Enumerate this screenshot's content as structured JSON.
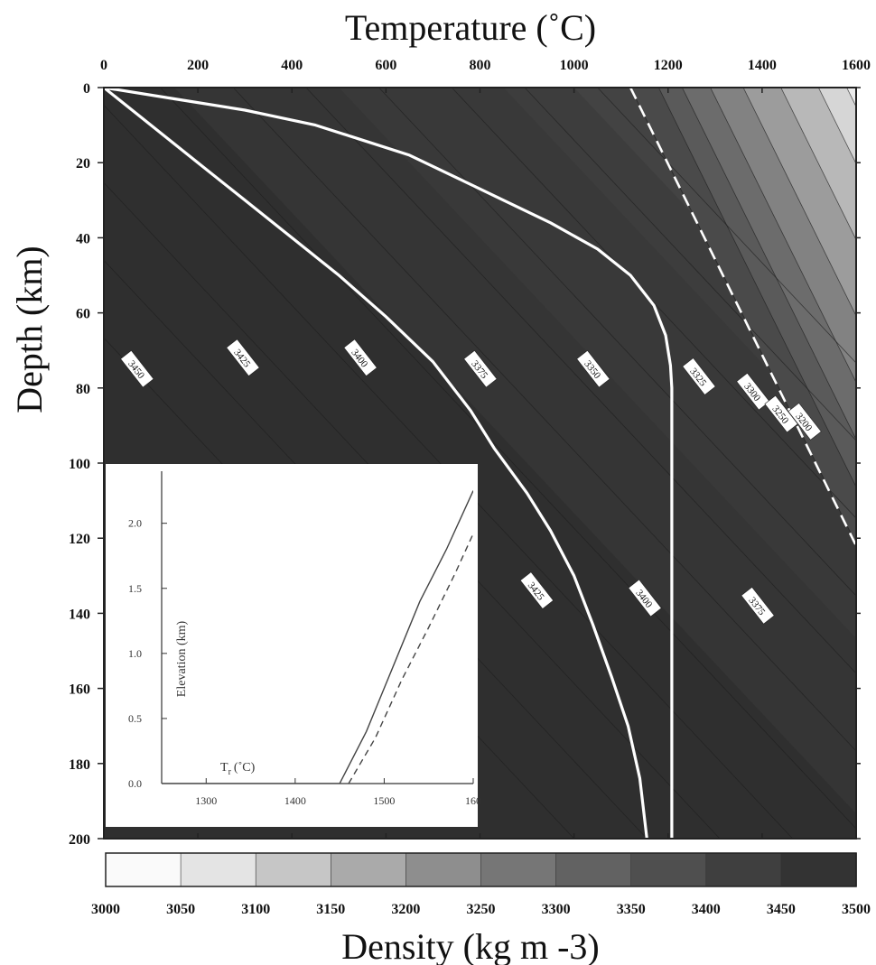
{
  "chart_data": [
    {
      "type": "heatmap",
      "title": "Temperature (˚C)",
      "xlabel": "Temperature (˚C)",
      "ylabel": "Depth (km)",
      "colorbar_label": "Density (kg m -3)",
      "xlim": [
        0,
        1600
      ],
      "ylim": [
        200,
        0
      ],
      "x_ticks": [
        0,
        200,
        400,
        600,
        800,
        1000,
        1200,
        1400,
        1600
      ],
      "y_ticks": [
        0,
        20,
        40,
        60,
        80,
        100,
        120,
        140,
        160,
        180,
        200
      ],
      "colorbar_ticks": [
        3000,
        3050,
        3100,
        3150,
        3200,
        3250,
        3300,
        3350,
        3400,
        3450,
        3500
      ],
      "colorbar_colors": [
        "#fafafa",
        "#e4e4e4",
        "#c6c6c6",
        "#aaaaaa",
        "#8e8e8e",
        "#767676",
        "#626262",
        "#4f4f4f",
        "#3f3f3f",
        "#333333"
      ],
      "contour_labels": [
        {
          "text": "3450",
          "x": 70,
          "y": 75
        },
        {
          "text": "3425",
          "x": 295,
          "y": 72
        },
        {
          "text": "3400",
          "x": 545,
          "y": 72
        },
        {
          "text": "3375",
          "x": 800,
          "y": 75
        },
        {
          "text": "3350",
          "x": 1040,
          "y": 75
        },
        {
          "text": "3325",
          "x": 1265,
          "y": 77
        },
        {
          "text": "3300",
          "x": 1380,
          "y": 81
        },
        {
          "text": "3250",
          "x": 1440,
          "y": 87
        },
        {
          "text": "3200",
          "x": 1490,
          "y": 89
        },
        {
          "text": "3425",
          "x": 920,
          "y": 134
        },
        {
          "text": "3400",
          "x": 1150,
          "y": 136
        },
        {
          "text": "3375",
          "x": 1390,
          "y": 138
        }
      ],
      "geotherms": [
        {
          "style": "solid-white",
          "points": [
            [
              0,
              0
            ],
            [
              150,
              3
            ],
            [
              300,
              6
            ],
            [
              450,
              10
            ],
            [
              550,
              14
            ],
            [
              650,
              18
            ],
            [
              750,
              24
            ],
            [
              850,
              30
            ],
            [
              950,
              36
            ],
            [
              1050,
              43
            ],
            [
              1120,
              50
            ],
            [
              1170,
              58
            ],
            [
              1195,
              66
            ],
            [
              1205,
              74
            ],
            [
              1208,
              80
            ],
            [
              1208,
              120
            ],
            [
              1208,
              160
            ],
            [
              1208,
              200
            ]
          ]
        },
        {
          "style": "solid-white",
          "points": [
            [
              0,
              0
            ],
            [
              100,
              10
            ],
            [
              200,
              20
            ],
            [
              300,
              30
            ],
            [
              400,
              40
            ],
            [
              500,
              50
            ],
            [
              600,
              61
            ],
            [
              700,
              73
            ],
            [
              780,
              86
            ],
            [
              830,
              96
            ],
            [
              900,
              108
            ],
            [
              950,
              118
            ],
            [
              1000,
              130
            ],
            [
              1040,
              143
            ],
            [
              1080,
              157
            ],
            [
              1115,
              170
            ],
            [
              1140,
              184
            ],
            [
              1155,
              200
            ]
          ]
        },
        {
          "style": "dashed-white",
          "points": [
            [
              1120,
              0
            ],
            [
              1600,
              122
            ]
          ]
        }
      ],
      "solidus": [
        [
          1120,
          0
        ],
        [
          1600,
          122
        ]
      ]
    },
    {
      "type": "line",
      "xlabel": "T",
      "xlabel_sub": "r",
      "xlabel_unit": "(˚C)",
      "ylabel": "Elevation (km)",
      "xlim": [
        1250,
        1600
      ],
      "ylim": [
        0,
        2.4
      ],
      "x_ticks": [
        1300,
        1400,
        1500,
        "160"
      ],
      "y_ticks": [
        0.0,
        0.5,
        1.0,
        1.5,
        2.0
      ],
      "series": [
        {
          "style": "solid",
          "x": [
            1450,
            1480,
            1510,
            1540,
            1570,
            1600
          ],
          "y": [
            0.0,
            0.4,
            0.9,
            1.4,
            1.8,
            2.25
          ]
        },
        {
          "style": "dashed",
          "x": [
            1460,
            1490,
            1520,
            1550,
            1580,
            1600
          ],
          "y": [
            0.0,
            0.35,
            0.8,
            1.2,
            1.62,
            1.92
          ]
        }
      ]
    }
  ]
}
